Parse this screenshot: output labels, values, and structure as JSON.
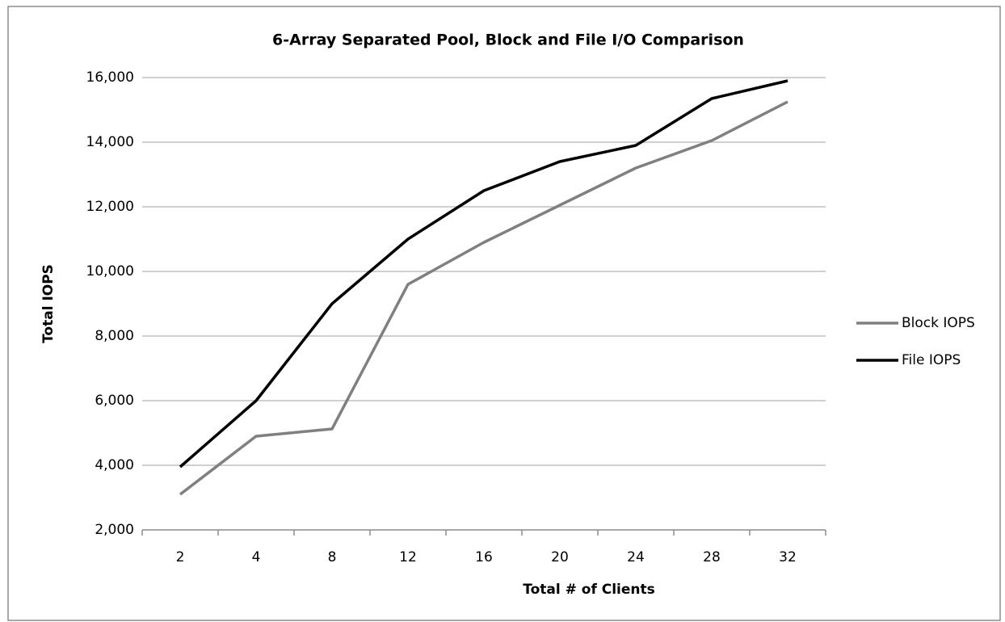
{
  "chart_data": {
    "type": "line",
    "title": "6-Array Separated Pool, Block and File I/O Comparison",
    "x_label": "Total # of Clients",
    "y_label": "Total IOPS",
    "categories": [
      "2",
      "4",
      "8",
      "12",
      "16",
      "20",
      "24",
      "28",
      "32"
    ],
    "series": [
      {
        "name": "Block IOPS",
        "color": "#808080",
        "values": [
          3100,
          4900,
          5125,
          9600,
          10900,
          12050,
          13200,
          14050,
          15250
        ]
      },
      {
        "name": "File IOPS",
        "color": "#000000",
        "values": [
          3950,
          6000,
          9000,
          11000,
          12500,
          13400,
          13900,
          15350,
          15900
        ]
      }
    ],
    "ylim": [
      2000,
      16000
    ],
    "yticks": [
      {
        "value": 2000,
        "label": "2,000"
      },
      {
        "value": 4000,
        "label": "4,000"
      },
      {
        "value": 6000,
        "label": "6,000"
      },
      {
        "value": 8000,
        "label": "8,000"
      },
      {
        "value": 10000,
        "label": "10,000"
      },
      {
        "value": 12000,
        "label": "12,000"
      },
      {
        "value": 14000,
        "label": "14,000"
      },
      {
        "value": 16000,
        "label": "16,000"
      }
    ],
    "grid": true,
    "legend": "right"
  }
}
